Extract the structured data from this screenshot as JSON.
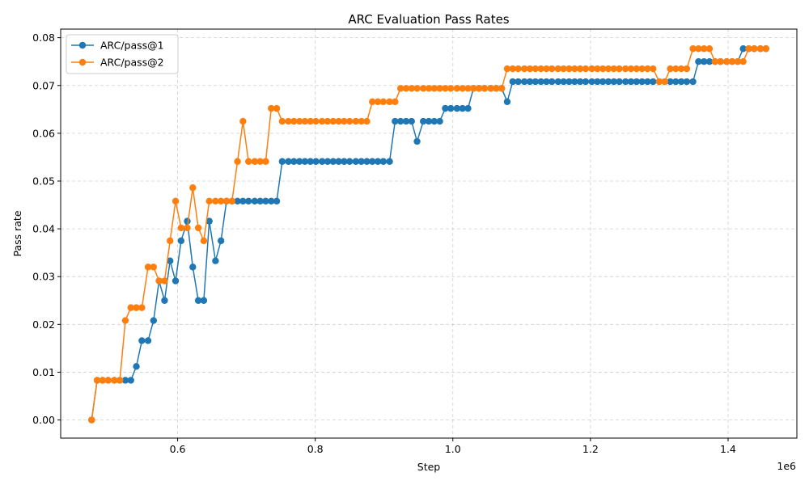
{
  "chart_data": {
    "type": "line",
    "title": "ARC Evaluation Pass Rates",
    "xlabel": "Step",
    "ylabel": "Pass rate",
    "x_offset_text": "1e6",
    "xlim": [
      430000,
      1500000
    ],
    "ylim": [
      -0.0038,
      0.0818
    ],
    "xticks": [
      0.6,
      0.8,
      1.0,
      1.2,
      1.4
    ],
    "xtick_labels": [
      "0.6",
      "0.8",
      "1.0",
      "1.2",
      "1.4"
    ],
    "yticks": [
      0.0,
      0.01,
      0.02,
      0.03,
      0.04,
      0.05,
      0.06,
      0.07,
      0.08
    ],
    "ytick_labels": [
      "0.00",
      "0.01",
      "0.02",
      "0.03",
      "0.04",
      "0.05",
      "0.06",
      "0.07",
      "0.08"
    ],
    "grid": true,
    "legend_position": "top-left",
    "x": [
      475000,
      483000,
      491000,
      499000,
      508000,
      516000,
      524000,
      532000,
      540000,
      548000,
      557000,
      565000,
      573000,
      581000,
      589000,
      597000,
      605000,
      614000,
      622000,
      630000,
      638000,
      646000,
      655000,
      663000,
      671000,
      679000,
      687000,
      695000,
      703000,
      712000,
      720000,
      728000,
      736000,
      744000,
      752000,
      761000,
      769000,
      777000,
      785000,
      793000,
      801000,
      810000,
      818000,
      826000,
      834000,
      842000,
      850000,
      859000,
      867000,
      875000,
      883000,
      891000,
      899000,
      908000,
      916000,
      924000,
      932000,
      940000,
      948000,
      957000,
      965000,
      973000,
      981000,
      989000,
      997000,
      1006000,
      1014000,
      1022000,
      1030000,
      1038000,
      1046000,
      1055000,
      1063000,
      1071000,
      1079000,
      1087000,
      1095000,
      1104000,
      1112000,
      1120000,
      1128000,
      1136000,
      1144000,
      1153000,
      1161000,
      1169000,
      1177000,
      1185000,
      1193000,
      1202000,
      1210000,
      1218000,
      1226000,
      1234000,
      1242000,
      1251000,
      1259000,
      1267000,
      1275000,
      1283000,
      1291000,
      1300000,
      1308000,
      1316000,
      1324000,
      1332000,
      1340000,
      1349000,
      1357000,
      1365000,
      1373000,
      1381000,
      1389000,
      1398000,
      1406000,
      1414000,
      1422000,
      1430000,
      1438000,
      1447000,
      1455000
    ],
    "series": [
      {
        "name": "ARC/pass@1",
        "color": "#1f77b4",
        "values": [
          0.0,
          0.0083,
          0.0083,
          0.0083,
          0.0083,
          0.0083,
          0.0083,
          0.0083,
          0.0112,
          0.0166,
          0.0166,
          0.0208,
          0.0291,
          0.025,
          0.0333,
          0.0291,
          0.0375,
          0.0416,
          0.032,
          0.025,
          0.025,
          0.0416,
          0.0333,
          0.0375,
          0.0458,
          0.0458,
          0.0458,
          0.0458,
          0.0458,
          0.0458,
          0.0458,
          0.0458,
          0.0458,
          0.0458,
          0.0541,
          0.0541,
          0.0541,
          0.0541,
          0.0541,
          0.0541,
          0.0541,
          0.0541,
          0.0541,
          0.0541,
          0.0541,
          0.0541,
          0.0541,
          0.0541,
          0.0541,
          0.0541,
          0.0541,
          0.0541,
          0.0541,
          0.0541,
          0.0625,
          0.0625,
          0.0625,
          0.0625,
          0.0583,
          0.0625,
          0.0625,
          0.0625,
          0.0625,
          0.0652,
          0.0652,
          0.0652,
          0.0652,
          0.0652,
          0.0694,
          0.0694,
          0.0694,
          0.0694,
          0.0694,
          0.0694,
          0.0666,
          0.0708,
          0.0708,
          0.0708,
          0.0708,
          0.0708,
          0.0708,
          0.0708,
          0.0708,
          0.0708,
          0.0708,
          0.0708,
          0.0708,
          0.0708,
          0.0708,
          0.0708,
          0.0708,
          0.0708,
          0.0708,
          0.0708,
          0.0708,
          0.0708,
          0.0708,
          0.0708,
          0.0708,
          0.0708,
          0.0708,
          0.0708,
          0.0708,
          0.0708,
          0.0708,
          0.0708,
          0.0708,
          0.0708,
          0.075,
          0.075,
          0.075,
          0.075,
          0.075,
          0.075,
          0.075,
          0.075,
          0.0777,
          0.0777,
          0.0777,
          0.0777,
          0.0777
        ]
      },
      {
        "name": "ARC/pass@2",
        "color": "#ff7f0e",
        "values": [
          0.0,
          0.0083,
          0.0083,
          0.0083,
          0.0083,
          0.0083,
          0.0208,
          0.0235,
          0.0235,
          0.0235,
          0.032,
          0.032,
          0.0291,
          0.0291,
          0.0375,
          0.0458,
          0.0402,
          0.0402,
          0.0486,
          0.0402,
          0.0375,
          0.0458,
          0.0458,
          0.0458,
          0.0458,
          0.0458,
          0.0541,
          0.0625,
          0.0541,
          0.0541,
          0.0541,
          0.0541,
          0.0652,
          0.0652,
          0.0625,
          0.0625,
          0.0625,
          0.0625,
          0.0625,
          0.0625,
          0.0625,
          0.0625,
          0.0625,
          0.0625,
          0.0625,
          0.0625,
          0.0625,
          0.0625,
          0.0625,
          0.0625,
          0.0666,
          0.0666,
          0.0666,
          0.0666,
          0.0666,
          0.0694,
          0.0694,
          0.0694,
          0.0694,
          0.0694,
          0.0694,
          0.0694,
          0.0694,
          0.0694,
          0.0694,
          0.0694,
          0.0694,
          0.0694,
          0.0694,
          0.0694,
          0.0694,
          0.0694,
          0.0694,
          0.0694,
          0.0735,
          0.0735,
          0.0735,
          0.0735,
          0.0735,
          0.0735,
          0.0735,
          0.0735,
          0.0735,
          0.0735,
          0.0735,
          0.0735,
          0.0735,
          0.0735,
          0.0735,
          0.0735,
          0.0735,
          0.0735,
          0.0735,
          0.0735,
          0.0735,
          0.0735,
          0.0735,
          0.0735,
          0.0735,
          0.0735,
          0.0735,
          0.0708,
          0.0708,
          0.0735,
          0.0735,
          0.0735,
          0.0735,
          0.0777,
          0.0777,
          0.0777,
          0.0777,
          0.075,
          0.075,
          0.075,
          0.075,
          0.075,
          0.075,
          0.0777,
          0.0777,
          0.0777,
          0.0777
        ]
      }
    ]
  }
}
